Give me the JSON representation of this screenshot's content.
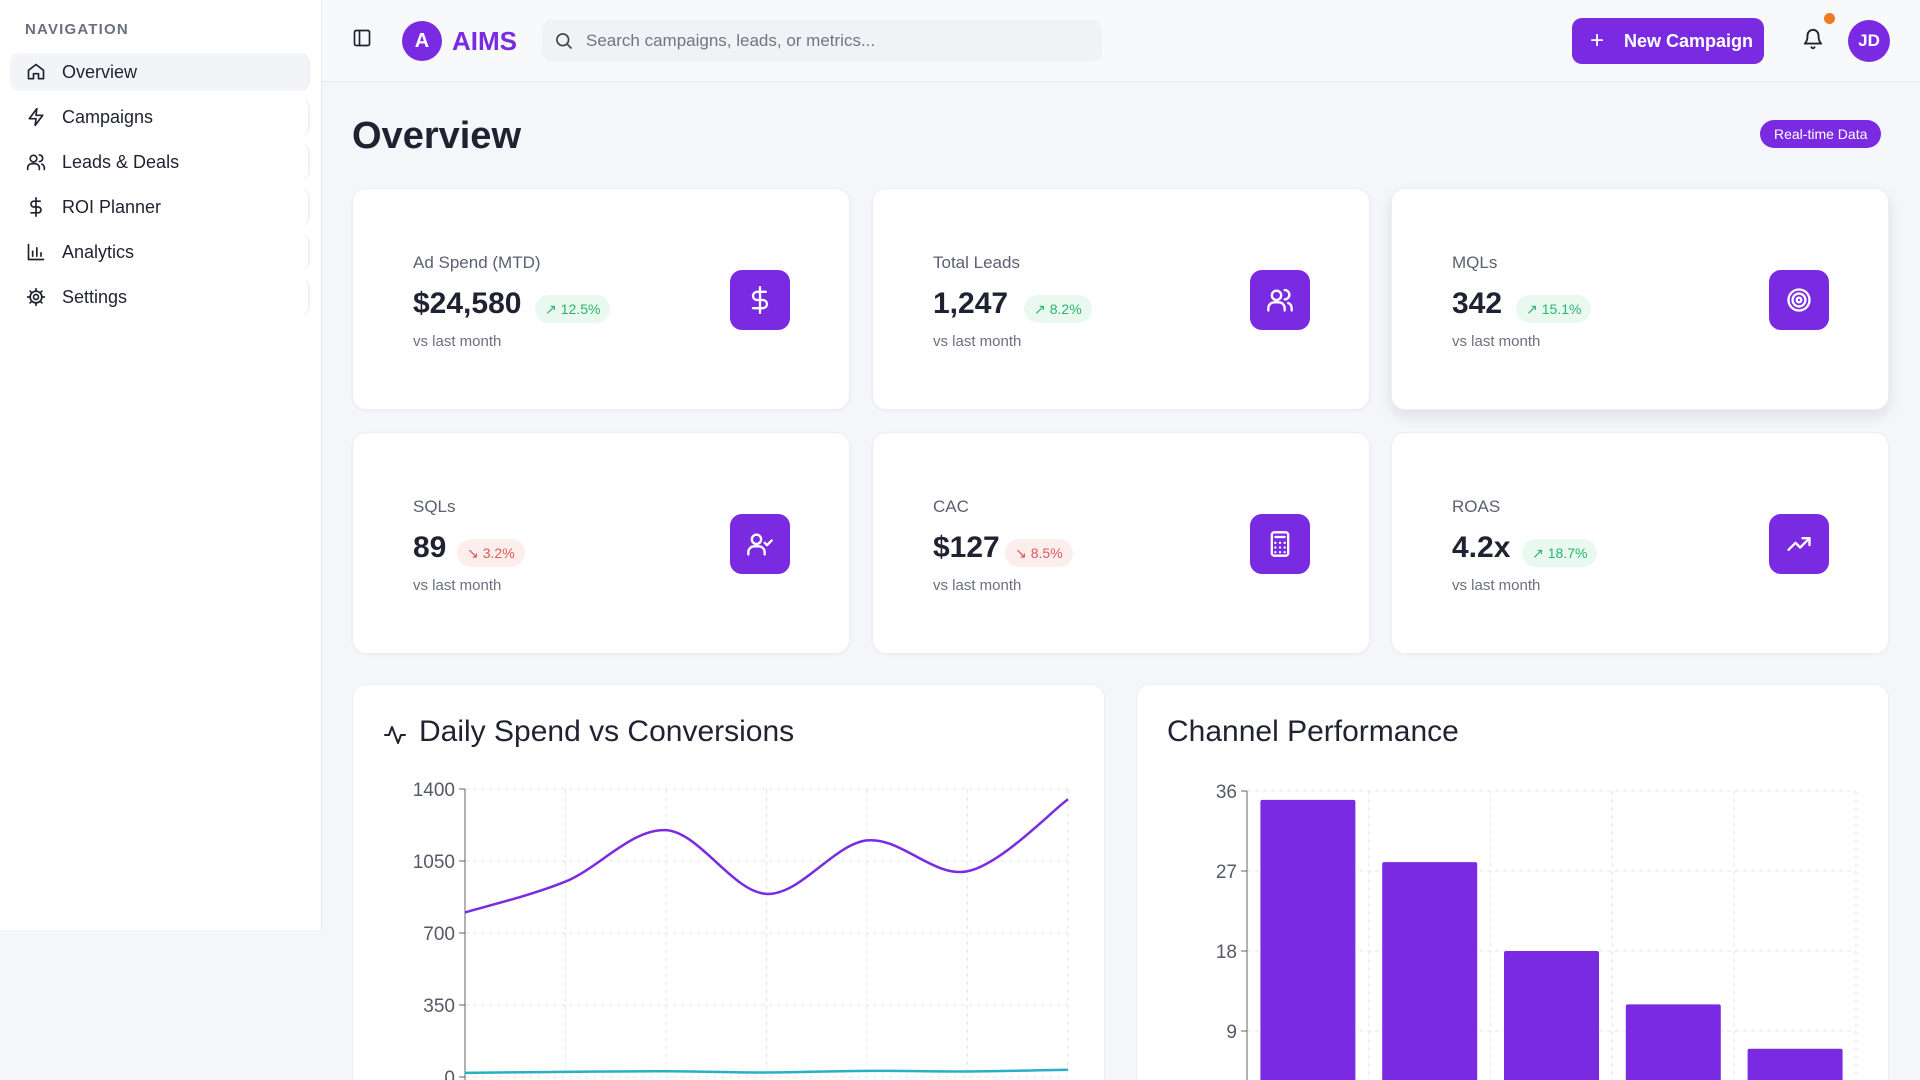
{
  "sidebar": {
    "heading": "NAVIGATION",
    "items": [
      {
        "label": "Overview",
        "icon": "home-icon"
      },
      {
        "label": "Campaigns",
        "icon": "lightning-icon"
      },
      {
        "label": "Leads & Deals",
        "icon": "users-icon"
      },
      {
        "label": "ROI Planner",
        "icon": "dollar-icon"
      },
      {
        "label": "Analytics",
        "icon": "bar-chart-icon"
      },
      {
        "label": "Settings",
        "icon": "gear-icon"
      }
    ],
    "active_index": 0
  },
  "header": {
    "logo_letter": "A",
    "app_name": "AIMS",
    "search_placeholder": "Search campaigns, leads, or metrics...",
    "new_campaign_label": "New Campaign",
    "avatar_initials": "JD"
  },
  "main": {
    "title": "Overview",
    "badge": "Real-time Data",
    "kpis": [
      {
        "label": "Ad Spend (MTD)",
        "value": "$24,580",
        "delta": "12.5%",
        "trend": "up",
        "sub": "vs last month",
        "icon": "dollar-icon"
      },
      {
        "label": "Total Leads",
        "value": "1,247",
        "delta": "8.2%",
        "trend": "up",
        "sub": "vs last month",
        "icon": "users-icon"
      },
      {
        "label": "MQLs",
        "value": "342",
        "delta": "15.1%",
        "trend": "up",
        "sub": "vs last month",
        "icon": "target-icon"
      },
      {
        "label": "SQLs",
        "value": "89",
        "delta": "3.2%",
        "trend": "down",
        "sub": "vs last month",
        "icon": "user-check-icon"
      },
      {
        "label": "CAC",
        "value": "$127",
        "delta": "8.5%",
        "trend": "down",
        "sub": "vs last month",
        "icon": "calculator-icon"
      },
      {
        "label": "ROAS",
        "value": "4.2x",
        "delta": "18.7%",
        "trend": "up",
        "sub": "vs last month",
        "icon": "trending-up-icon"
      }
    ]
  },
  "colors": {
    "accent": "#7a2be2",
    "line_secondary": "#27b0c4",
    "up": "#28b46b",
    "down": "#e25555"
  },
  "chart_data": [
    {
      "type": "line",
      "title": "Daily Spend vs Conversions",
      "x": [
        0,
        1,
        2,
        3,
        4,
        5,
        6
      ],
      "series": [
        {
          "values": [
            800,
            950,
            1200,
            890,
            1150,
            1000,
            1350
          ]
        },
        {
          "values": [
            20,
            25,
            28,
            22,
            30,
            27,
            35
          ]
        }
      ],
      "ylim": [
        0,
        1400
      ],
      "yticks": [
        0,
        350,
        700,
        1050,
        1400
      ],
      "grid": true
    },
    {
      "type": "bar",
      "title": "Channel Performance",
      "categories": [
        "",
        "",
        "",
        "",
        ""
      ],
      "values": [
        35,
        28,
        18,
        12,
        7
      ],
      "ylim": [
        0,
        36
      ],
      "yticks": [
        9,
        18,
        27,
        36
      ],
      "grid": true
    }
  ]
}
